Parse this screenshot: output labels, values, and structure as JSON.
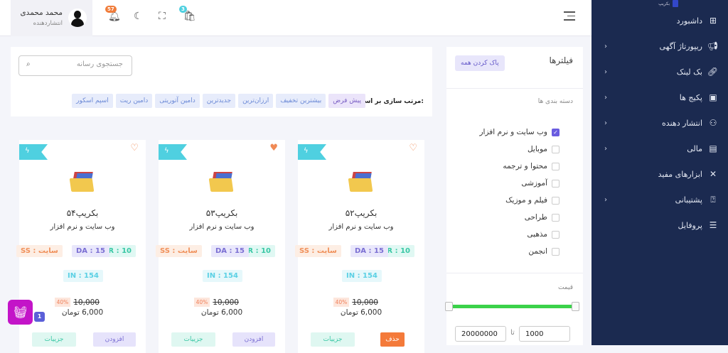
{
  "sidebar": {
    "logo_text": "بکریپ",
    "items": [
      {
        "label": "داشبورد",
        "icon": "grid-icon",
        "chevron": false
      },
      {
        "label": "ریپورتاژ آگهی",
        "icon": "megaphone-icon",
        "chevron": true
      },
      {
        "label": "بک لینک",
        "icon": "link-icon",
        "chevron": true
      },
      {
        "label": "پکیج ها",
        "icon": "package-icon",
        "chevron": true
      },
      {
        "label": "انتشار دهنده",
        "icon": "user-icon",
        "chevron": true
      },
      {
        "label": "مالی",
        "icon": "calculator-icon",
        "chevron": true
      },
      {
        "label": "ابزارهای مفید",
        "icon": "tools-icon",
        "chevron": false
      },
      {
        "label": "پشتیبانی",
        "icon": "help-icon",
        "chevron": true
      },
      {
        "label": "پروفایل",
        "icon": "profile-icon",
        "chevron": false
      }
    ]
  },
  "header": {
    "user_name": "محمد محمدی",
    "user_role": "انتشاردهنده",
    "notifications": "57",
    "cart_badge": "3"
  },
  "filters": {
    "title": "فیلترها",
    "clear_all": "پاک کردن همه",
    "categories_label": "دسته بندی ها",
    "categories": [
      {
        "label": "وب سایت و نرم افزار",
        "checked": true
      },
      {
        "label": "موبایل",
        "checked": false
      },
      {
        "label": "محتوا و ترجمه",
        "checked": false
      },
      {
        "label": "آموزشی",
        "checked": false
      },
      {
        "label": "فیلم و موزیک",
        "checked": false
      },
      {
        "label": "طراحی",
        "checked": false
      },
      {
        "label": "مذهبی",
        "checked": false
      },
      {
        "label": "انجمن",
        "checked": false
      }
    ],
    "price_label": "قیمت",
    "price_min": "1000",
    "price_to": "تا",
    "price_max": "20000000",
    "slider_color": "#3bd24a"
  },
  "search": {
    "placeholder": "جستجوی رسانه"
  },
  "sort": {
    "label": "مرتب سازی بر اساس:",
    "options": [
      "پیش فرض",
      "بیشترین تخفیف",
      "ارزان‌ترین",
      "جدیدترین",
      "دامین آتوریتی",
      "دامین ریت",
      "اسپم اسکور"
    ],
    "active": "پیش فرض"
  },
  "cards": [
    {
      "title": "بکریپ۵۲",
      "category": "وب سایت و نرم افزار",
      "dr": "DR : 10",
      "da": "DA : 15",
      "ss": "SS : سایت",
      "in": "IN : 154",
      "discount": "40%",
      "old_price": "10,000",
      "price": "6,000 تومان",
      "details": "جزییات",
      "action": "حذف",
      "favorited": false
    },
    {
      "title": "بکریپ۵۳",
      "category": "وب سایت و نرم افزار",
      "dr": "DR : 10",
      "da": "DA : 15",
      "ss": "SS : سایت",
      "in": "IN : 154",
      "discount": "40%",
      "old_price": "10,000",
      "price": "6,000 تومان",
      "details": "جزییات",
      "action": "افزودن",
      "favorited": true
    },
    {
      "title": "بکریپ۵۴",
      "category": "وب سایت و نرم افزار",
      "dr": "DR : 10",
      "da": "DA : 15",
      "ss": "SS : سایت",
      "in": "IN : 154",
      "discount": "40%",
      "old_price": "10,000",
      "price": "6,000 تومان",
      "details": "جزییات",
      "action": "افزودن",
      "favorited": false
    }
  ],
  "cart_fab": {
    "count": "1"
  }
}
